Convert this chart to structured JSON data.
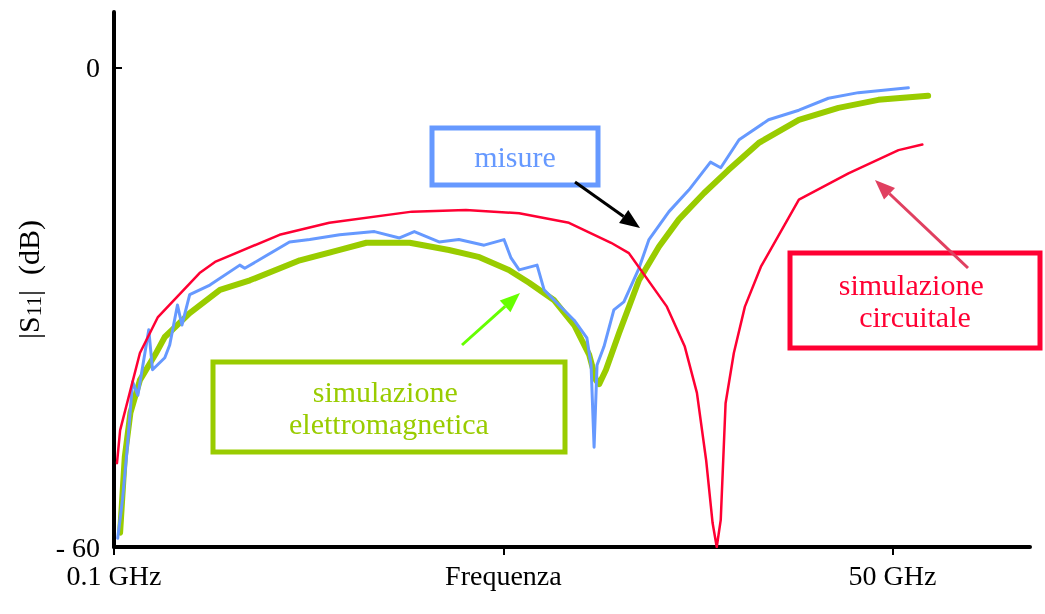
{
  "chart_data": {
    "type": "line",
    "ylabel": "|S$_{11}$|  (dB)",
    "xlabel": "Frequenza",
    "log": "x",
    "grid": false,
    "legend": false,
    "marker": "none",
    "line_style": "solid",
    "xlim": [
      0.1,
      150
    ],
    "xticks": [
      {
        "value": 0.1,
        "label": "0.1 GHz"
      },
      {
        "value": 2.24,
        "label": null
      },
      {
        "value": 50,
        "label": "50 GHz"
      }
    ],
    "ylim": [
      -60,
      7
    ],
    "yticks": [
      {
        "value": 0,
        "label": "0"
      },
      {
        "value": -60,
        "label": "- 60"
      }
    ],
    "series": [
      {
        "name": "simulazione elettromagnetica",
        "color": "#99cc00",
        "x": [
          0.105,
          0.109,
          0.114,
          0.123,
          0.139,
          0.15,
          0.183,
          0.233,
          0.296,
          0.441,
          0.606,
          0.75,
          1.06,
          1.45,
          1.85,
          2.34,
          2.75,
          3.36,
          3.94,
          4.44,
          4.69,
          4.81,
          5.08,
          5.64,
          6.61,
          7.75,
          9.08,
          11.1,
          13.5,
          17.2,
          23.7,
          32.5,
          44.7,
          66.5
        ],
        "values": [
          -58.2,
          -48.7,
          -43.2,
          -39.1,
          -35.9,
          -33.7,
          -30.7,
          -27.8,
          -26.6,
          -24.1,
          -22.8,
          -21.9,
          -21.9,
          -22.8,
          -23.7,
          -25.3,
          -26.9,
          -29.1,
          -32.2,
          -35.9,
          -39.1,
          -39.6,
          -37.8,
          -33.2,
          -26.6,
          -22.4,
          -19.0,
          -15.7,
          -12.8,
          -9.4,
          -6.5,
          -5.0,
          -4.0,
          -3.5
        ]
      },
      {
        "name": "misure",
        "color": "#6699ff",
        "x": [
          0.103,
          0.107,
          0.111,
          0.116,
          0.121,
          0.132,
          0.136,
          0.15,
          0.156,
          0.166,
          0.172,
          0.183,
          0.215,
          0.273,
          0.284,
          0.406,
          0.477,
          0.606,
          0.8,
          0.977,
          1.1,
          1.34,
          1.57,
          1.92,
          2.25,
          2.38,
          2.54,
          2.93,
          3.1,
          3.49,
          3.94,
          4.36,
          4.51,
          4.62,
          4.73,
          5.0,
          5.41,
          5.86,
          6.61,
          7.16,
          8.4,
          9.84,
          11.7,
          12.7,
          14.7,
          18.6,
          23.7,
          30.0,
          38.1,
          56.8
        ],
        "values": [
          -58.9,
          -54.1,
          -47.9,
          -39.3,
          -41.0,
          -32.8,
          -37.8,
          -36.3,
          -34.7,
          -29.7,
          -32.2,
          -28.4,
          -27.2,
          -24.7,
          -25.1,
          -21.8,
          -21.5,
          -20.9,
          -20.5,
          -21.3,
          -20.5,
          -21.8,
          -21.5,
          -22.2,
          -21.5,
          -23.8,
          -25.3,
          -24.7,
          -27.8,
          -29.7,
          -31.6,
          -33.8,
          -37.2,
          -47.5,
          -37.2,
          -34.9,
          -30.3,
          -29.3,
          -25.1,
          -21.5,
          -18.0,
          -15.3,
          -11.8,
          -12.5,
          -9.0,
          -6.5,
          -5.3,
          -3.8,
          -3.1,
          -2.5
        ]
      },
      {
        "name": "simulazione circuitale",
        "color": "#ff0033",
        "x": [
          0.1024,
          0.105,
          0.123,
          0.142,
          0.198,
          0.224,
          0.375,
          0.558,
          1.08,
          1.66,
          2.54,
          3.78,
          5.29,
          6.1,
          8.26,
          9.53,
          10.5,
          11.3,
          11.9,
          12.3,
          12.7,
          13.2,
          14.1,
          15.4,
          17.5,
          23.7,
          35.2,
          52.5,
          63.5
        ],
        "values": [
          -49.5,
          -45.4,
          -35.7,
          -31.2,
          -25.7,
          -24.3,
          -20.9,
          -19.4,
          -18.0,
          -17.8,
          -18.2,
          -19.4,
          -21.9,
          -23.2,
          -29.9,
          -34.9,
          -40.7,
          -49.1,
          -57.0,
          -60,
          -56.6,
          -42.0,
          -35.7,
          -29.9,
          -24.9,
          -16.5,
          -13.2,
          -10.3,
          -9.6
        ]
      }
    ]
  }
}
